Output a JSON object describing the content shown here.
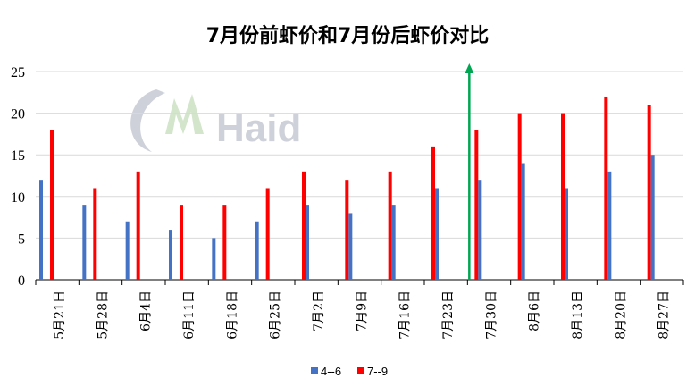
{
  "chart_data": {
    "type": "bar",
    "title": "7月份前虾价和7月份后虾价对比",
    "xlabel": "",
    "ylabel": "",
    "ylim": [
      0,
      25
    ],
    "yticks": [
      0,
      5,
      10,
      15,
      20,
      25
    ],
    "grid": true,
    "legend_position": "bottom",
    "categories": [
      "5月21日",
      "5月28日",
      "6月4日",
      "6月11日",
      "6月18日",
      "6月25日",
      "7月2日",
      "7月9日",
      "7月16日",
      "7月23日",
      "7月30日",
      "8月6日",
      "8月13日",
      "8月20日",
      "8月27日"
    ],
    "series": [
      {
        "name": "4--6",
        "color": "#4472c4",
        "values": [
          12,
          9,
          7,
          6,
          5,
          7,
          null,
          null,
          null,
          null,
          null,
          null,
          null,
          null,
          null
        ]
      },
      {
        "name": "7--9",
        "color": "#ff0000",
        "values": [
          null,
          null,
          null,
          null,
          null,
          null,
          13,
          12,
          13,
          16,
          18,
          20,
          20,
          22,
          21
        ]
      },
      {
        "name": "4--6",
        "color": "#4472c4",
        "values": [
          null,
          null,
          null,
          null,
          null,
          null,
          9,
          8,
          9,
          11,
          12,
          14,
          11,
          13,
          15
        ]
      },
      {
        "name": "7--9",
        "color": "#ff0000",
        "values": [
          18,
          11,
          13,
          9,
          9,
          11,
          null,
          null,
          null,
          null,
          null,
          null,
          null,
          null,
          null
        ]
      }
    ],
    "annotation_arrow": {
      "between_categories": [
        "7月23日",
        "7月30日"
      ],
      "color": "#00a651"
    },
    "watermark": "Haid"
  }
}
